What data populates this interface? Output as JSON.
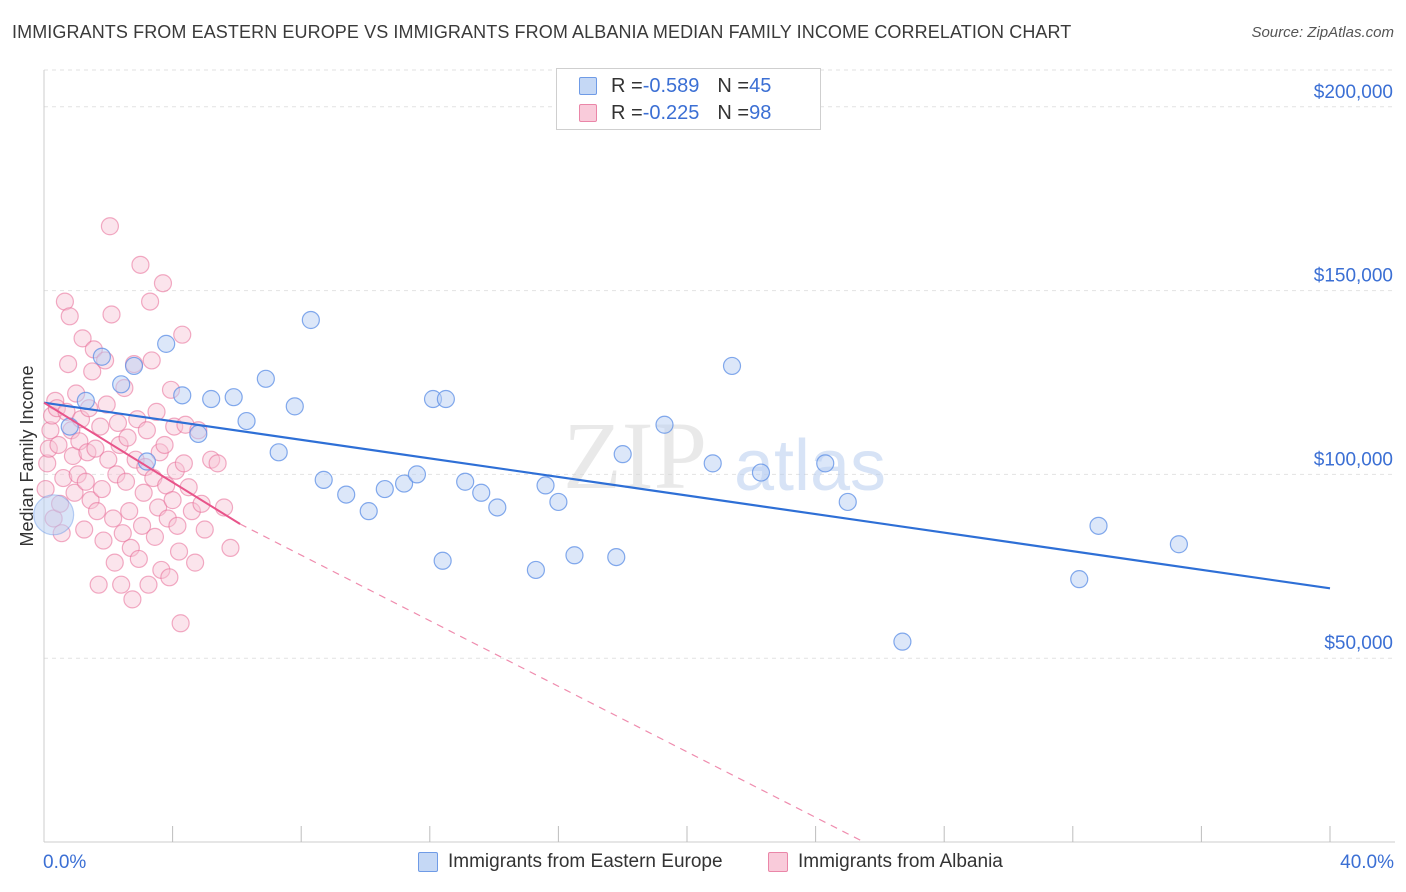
{
  "title": "IMMIGRANTS FROM EASTERN EUROPE VS IMMIGRANTS FROM ALBANIA MEDIAN FAMILY INCOME CORRELATION CHART",
  "source": "Source: ZipAtlas.com",
  "watermark": {
    "zip": "ZIP",
    "atlas": "atlas"
  },
  "legend_top": {
    "rows": [
      {
        "r_label": "R = ",
        "r_value": "-0.589",
        "n_label": "N = ",
        "n_value": "45"
      },
      {
        "r_label": "R = ",
        "r_value": "-0.225",
        "n_label": "N = ",
        "n_value": "98"
      }
    ]
  },
  "legend_bottom": [
    "Immigrants from Eastern Europe",
    "Immigrants from Albania"
  ],
  "colors": {
    "blue": "#5b8ee6",
    "blue_fill": "#b9d0f3",
    "pink": "#e86a95",
    "pink_fill": "#f7c3d4",
    "axis_text": "#3b6fd4"
  },
  "chart_data": {
    "type": "scatter",
    "xlabel": "",
    "ylabel": "Median Family Income",
    "xlim": [
      0,
      40
    ],
    "ylim": [
      0,
      210000
    ],
    "x_tick_labels": [
      "0.0%",
      "40.0%"
    ],
    "y_ticks": [
      50000,
      100000,
      150000,
      200000
    ],
    "y_tick_labels": [
      "$50,000",
      "$100,000",
      "$150,000",
      "$200,000"
    ],
    "grid": true,
    "legend_position": "bottom",
    "series": [
      {
        "name": "Immigrants from Eastern Europe",
        "color": "#5b8ee6",
        "r": -0.589,
        "n": 45,
        "trend": {
          "x": [
            0,
            40
          ],
          "y": [
            119500,
            69000
          ]
        },
        "points": [
          [
            0.3,
            89000
          ],
          [
            0.8,
            113000
          ],
          [
            1.3,
            120000
          ],
          [
            1.8,
            132000
          ],
          [
            2.4,
            124500
          ],
          [
            2.8,
            129500
          ],
          [
            3.2,
            103500
          ],
          [
            3.8,
            135500
          ],
          [
            4.3,
            121500
          ],
          [
            4.8,
            111000
          ],
          [
            5.2,
            120500
          ],
          [
            5.9,
            121000
          ],
          [
            6.3,
            114500
          ],
          [
            6.9,
            126000
          ],
          [
            7.3,
            106000
          ],
          [
            7.8,
            118500
          ],
          [
            8.3,
            142000
          ],
          [
            8.7,
            98500
          ],
          [
            9.4,
            94500
          ],
          [
            10.1,
            90000
          ],
          [
            10.6,
            96000
          ],
          [
            11.2,
            97500
          ],
          [
            11.6,
            100000
          ],
          [
            12.1,
            120500
          ],
          [
            12.4,
            76500
          ],
          [
            12.5,
            120500
          ],
          [
            13.1,
            98000
          ],
          [
            13.6,
            95000
          ],
          [
            14.1,
            91000
          ],
          [
            15.3,
            74000
          ],
          [
            15.6,
            97000
          ],
          [
            16.0,
            92500
          ],
          [
            16.5,
            78000
          ],
          [
            17.8,
            77500
          ],
          [
            18.0,
            105500
          ],
          [
            19.3,
            113500
          ],
          [
            20.8,
            103000
          ],
          [
            21.4,
            129500
          ],
          [
            22.3,
            100500
          ],
          [
            24.3,
            103000
          ],
          [
            25.0,
            92500
          ],
          [
            26.7,
            54500
          ],
          [
            32.2,
            71500
          ],
          [
            32.8,
            86000
          ],
          [
            35.3,
            81000
          ]
        ]
      },
      {
        "name": "Immigrants from Albania",
        "color": "#e86a95",
        "r": -0.225,
        "n": 98,
        "trend": {
          "x": [
            0,
            6.1
          ],
          "y": [
            119500,
            86500
          ]
        },
        "trend_dashed": {
          "x": [
            6.1,
            25.5
          ],
          "y": [
            86500,
            0
          ]
        },
        "points": [
          [
            0.05,
            96000
          ],
          [
            0.1,
            103000
          ],
          [
            0.15,
            107000
          ],
          [
            0.2,
            112000
          ],
          [
            0.25,
            116000
          ],
          [
            0.3,
            88000
          ],
          [
            0.35,
            120000
          ],
          [
            0.4,
            118000
          ],
          [
            0.45,
            108000
          ],
          [
            0.5,
            92000
          ],
          [
            0.55,
            84000
          ],
          [
            0.6,
            99000
          ],
          [
            0.65,
            147000
          ],
          [
            0.7,
            117000
          ],
          [
            0.75,
            130000
          ],
          [
            0.8,
            143000
          ],
          [
            0.85,
            112000
          ],
          [
            0.9,
            105000
          ],
          [
            0.95,
            95000
          ],
          [
            1.0,
            122000
          ],
          [
            1.05,
            100000
          ],
          [
            1.1,
            109000
          ],
          [
            1.15,
            115000
          ],
          [
            1.2,
            137000
          ],
          [
            1.25,
            85000
          ],
          [
            1.3,
            98000
          ],
          [
            1.35,
            106000
          ],
          [
            1.4,
            118000
          ],
          [
            1.45,
            93000
          ],
          [
            1.5,
            128000
          ],
          [
            1.55,
            134000
          ],
          [
            1.6,
            107000
          ],
          [
            1.65,
            90000
          ],
          [
            1.7,
            70000
          ],
          [
            1.75,
            113000
          ],
          [
            1.8,
            96000
          ],
          [
            1.85,
            82000
          ],
          [
            1.9,
            131000
          ],
          [
            1.95,
            119000
          ],
          [
            2.0,
            104000
          ],
          [
            2.05,
            167500
          ],
          [
            2.1,
            143500
          ],
          [
            2.15,
            88000
          ],
          [
            2.2,
            76000
          ],
          [
            2.25,
            100000
          ],
          [
            2.3,
            114000
          ],
          [
            2.35,
            108000
          ],
          [
            2.4,
            70000
          ],
          [
            2.45,
            84000
          ],
          [
            2.5,
            123500
          ],
          [
            2.55,
            98000
          ],
          [
            2.6,
            110000
          ],
          [
            2.65,
            90000
          ],
          [
            2.7,
            80000
          ],
          [
            2.75,
            66000
          ],
          [
            2.8,
            130000
          ],
          [
            2.85,
            104000
          ],
          [
            2.9,
            115000
          ],
          [
            2.95,
            77000
          ],
          [
            3.0,
            157000
          ],
          [
            3.05,
            86000
          ],
          [
            3.1,
            95000
          ],
          [
            3.15,
            102000
          ],
          [
            3.2,
            112000
          ],
          [
            3.25,
            70000
          ],
          [
            3.3,
            147000
          ],
          [
            3.35,
            131000
          ],
          [
            3.4,
            99000
          ],
          [
            3.45,
            83000
          ],
          [
            3.5,
            117000
          ],
          [
            3.55,
            91000
          ],
          [
            3.6,
            106000
          ],
          [
            3.65,
            74000
          ],
          [
            3.7,
            152000
          ],
          [
            3.75,
            108000
          ],
          [
            3.8,
            97000
          ],
          [
            3.85,
            88000
          ],
          [
            3.9,
            72000
          ],
          [
            3.95,
            123000
          ],
          [
            4.0,
            93000
          ],
          [
            4.05,
            113000
          ],
          [
            4.1,
            101000
          ],
          [
            4.15,
            86000
          ],
          [
            4.2,
            79000
          ],
          [
            4.25,
            59500
          ],
          [
            4.3,
            138000
          ],
          [
            4.35,
            103000
          ],
          [
            4.4,
            113500
          ],
          [
            4.5,
            96500
          ],
          [
            4.6,
            90000
          ],
          [
            4.7,
            76000
          ],
          [
            4.8,
            112000
          ],
          [
            4.9,
            92000
          ],
          [
            5.0,
            85000
          ],
          [
            5.2,
            104000
          ],
          [
            5.4,
            103000
          ],
          [
            5.6,
            91000
          ],
          [
            5.8,
            80000
          ]
        ]
      }
    ]
  }
}
